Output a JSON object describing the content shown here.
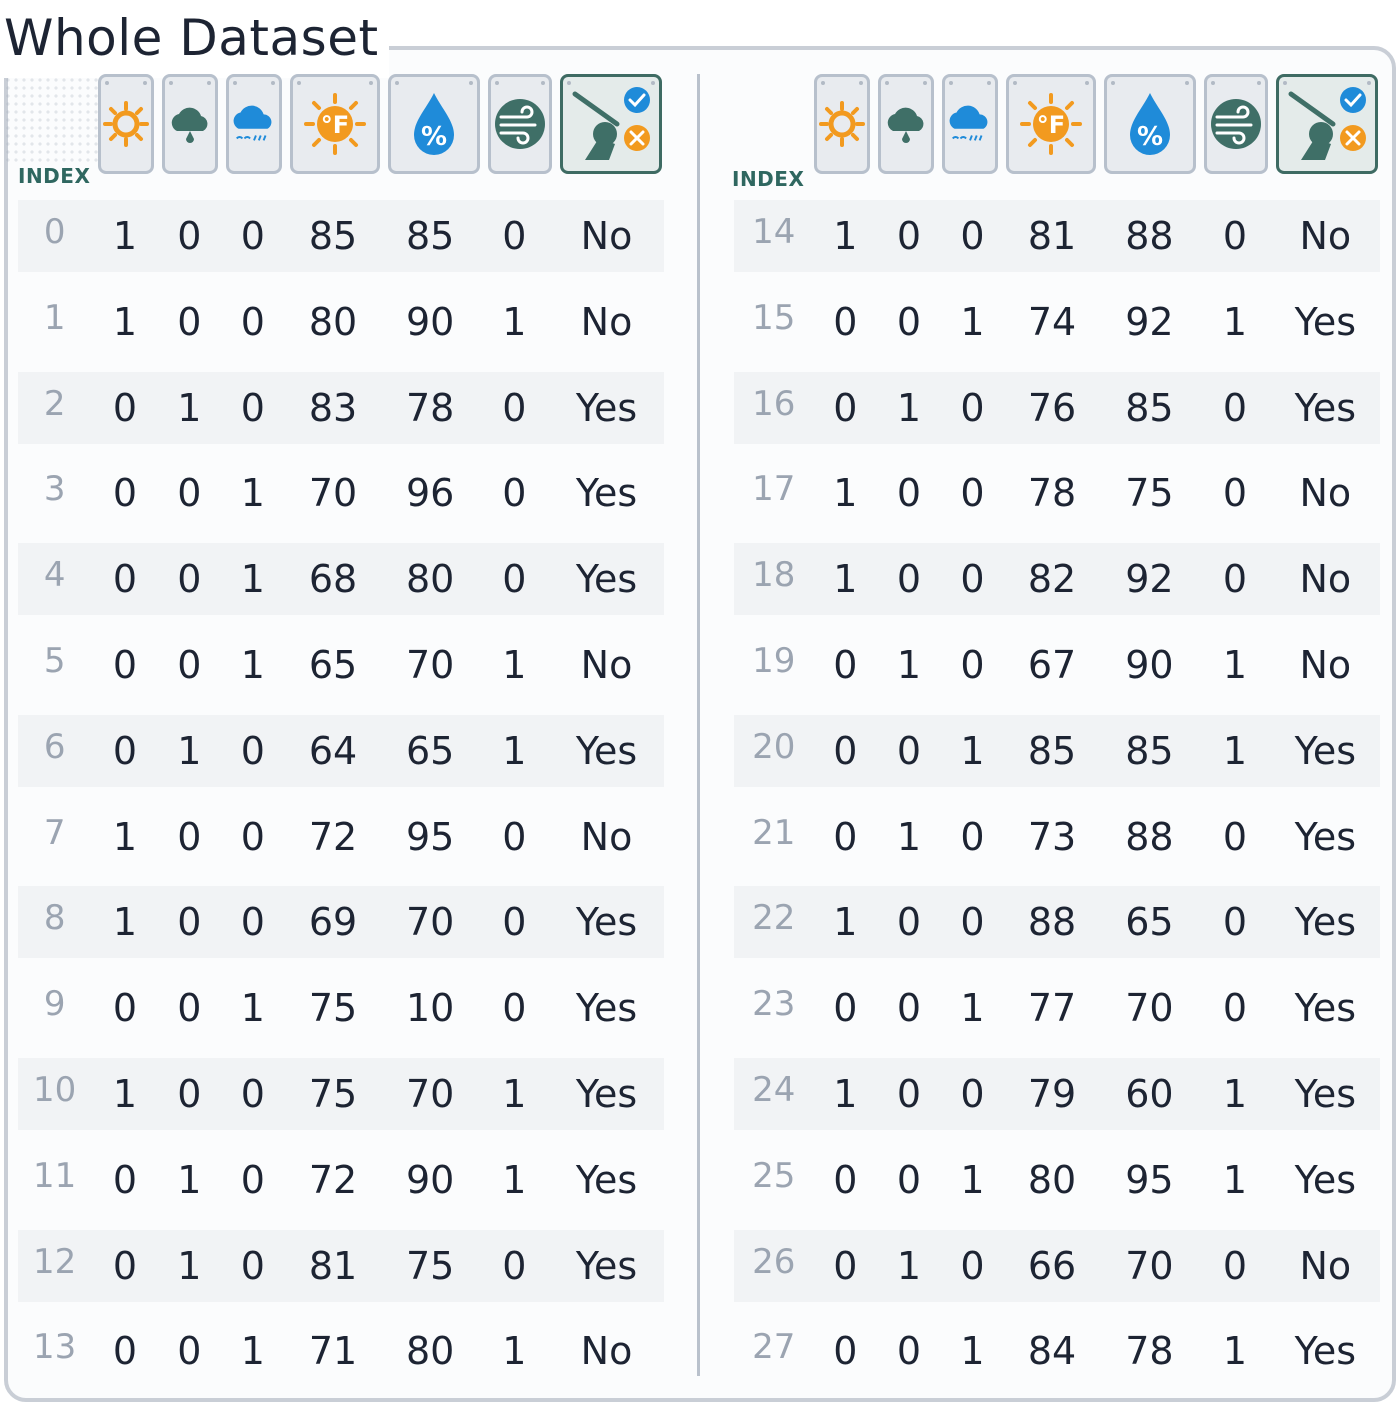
{
  "title": "Whole Dataset",
  "index_label": "INDEX",
  "colors": {
    "sunny": "#f29a1f",
    "cloudy": "#3f6f67",
    "rainy": "#1f8bd9",
    "humidity": "#1f8bd9",
    "wind": "#3f6f67",
    "play": "#3f6f67",
    "index_text": "#9ba4b1",
    "index_label": "#2f6760"
  },
  "header_icons": [
    "sun-icon",
    "cloud-icon",
    "rain-cloud-icon",
    "temperature-fahrenheit-icon",
    "humidity-percent-icon",
    "wind-icon",
    "golf-play-decision-icon"
  ],
  "left_table": [
    {
      "index": "0",
      "sunny": "1",
      "cloudy": "0",
      "rainy": "0",
      "temp": "85",
      "humidity": "85",
      "wind": "0",
      "play": "No"
    },
    {
      "index": "1",
      "sunny": "1",
      "cloudy": "0",
      "rainy": "0",
      "temp": "80",
      "humidity": "90",
      "wind": "1",
      "play": "No"
    },
    {
      "index": "2",
      "sunny": "0",
      "cloudy": "1",
      "rainy": "0",
      "temp": "83",
      "humidity": "78",
      "wind": "0",
      "play": "Yes"
    },
    {
      "index": "3",
      "sunny": "0",
      "cloudy": "0",
      "rainy": "1",
      "temp": "70",
      "humidity": "96",
      "wind": "0",
      "play": "Yes"
    },
    {
      "index": "4",
      "sunny": "0",
      "cloudy": "0",
      "rainy": "1",
      "temp": "68",
      "humidity": "80",
      "wind": "0",
      "play": "Yes"
    },
    {
      "index": "5",
      "sunny": "0",
      "cloudy": "0",
      "rainy": "1",
      "temp": "65",
      "humidity": "70",
      "wind": "1",
      "play": "No"
    },
    {
      "index": "6",
      "sunny": "0",
      "cloudy": "1",
      "rainy": "0",
      "temp": "64",
      "humidity": "65",
      "wind": "1",
      "play": "Yes"
    },
    {
      "index": "7",
      "sunny": "1",
      "cloudy": "0",
      "rainy": "0",
      "temp": "72",
      "humidity": "95",
      "wind": "0",
      "play": "No"
    },
    {
      "index": "8",
      "sunny": "1",
      "cloudy": "0",
      "rainy": "0",
      "temp": "69",
      "humidity": "70",
      "wind": "0",
      "play": "Yes"
    },
    {
      "index": "9",
      "sunny": "0",
      "cloudy": "0",
      "rainy": "1",
      "temp": "75",
      "humidity": "10",
      "wind": "0",
      "play": "Yes"
    },
    {
      "index": "10",
      "sunny": "1",
      "cloudy": "0",
      "rainy": "0",
      "temp": "75",
      "humidity": "70",
      "wind": "1",
      "play": "Yes"
    },
    {
      "index": "11",
      "sunny": "0",
      "cloudy": "1",
      "rainy": "0",
      "temp": "72",
      "humidity": "90",
      "wind": "1",
      "play": "Yes"
    },
    {
      "index": "12",
      "sunny": "0",
      "cloudy": "1",
      "rainy": "0",
      "temp": "81",
      "humidity": "75",
      "wind": "0",
      "play": "Yes"
    },
    {
      "index": "13",
      "sunny": "0",
      "cloudy": "0",
      "rainy": "1",
      "temp": "71",
      "humidity": "80",
      "wind": "1",
      "play": "No"
    }
  ],
  "right_table": [
    {
      "index": "14",
      "sunny": "1",
      "cloudy": "0",
      "rainy": "0",
      "temp": "81",
      "humidity": "88",
      "wind": "0",
      "play": "No"
    },
    {
      "index": "15",
      "sunny": "0",
      "cloudy": "0",
      "rainy": "1",
      "temp": "74",
      "humidity": "92",
      "wind": "1",
      "play": "Yes"
    },
    {
      "index": "16",
      "sunny": "0",
      "cloudy": "1",
      "rainy": "0",
      "temp": "76",
      "humidity": "85",
      "wind": "0",
      "play": "Yes"
    },
    {
      "index": "17",
      "sunny": "1",
      "cloudy": "0",
      "rainy": "0",
      "temp": "78",
      "humidity": "75",
      "wind": "0",
      "play": "No"
    },
    {
      "index": "18",
      "sunny": "1",
      "cloudy": "0",
      "rainy": "0",
      "temp": "82",
      "humidity": "92",
      "wind": "0",
      "play": "No"
    },
    {
      "index": "19",
      "sunny": "0",
      "cloudy": "1",
      "rainy": "0",
      "temp": "67",
      "humidity": "90",
      "wind": "1",
      "play": "No"
    },
    {
      "index": "20",
      "sunny": "0",
      "cloudy": "0",
      "rainy": "1",
      "temp": "85",
      "humidity": "85",
      "wind": "1",
      "play": "Yes"
    },
    {
      "index": "21",
      "sunny": "0",
      "cloudy": "1",
      "rainy": "0",
      "temp": "73",
      "humidity": "88",
      "wind": "0",
      "play": "Yes"
    },
    {
      "index": "22",
      "sunny": "1",
      "cloudy": "0",
      "rainy": "0",
      "temp": "88",
      "humidity": "65",
      "wind": "0",
      "play": "Yes"
    },
    {
      "index": "23",
      "sunny": "0",
      "cloudy": "0",
      "rainy": "1",
      "temp": "77",
      "humidity": "70",
      "wind": "0",
      "play": "Yes"
    },
    {
      "index": "24",
      "sunny": "1",
      "cloudy": "0",
      "rainy": "0",
      "temp": "79",
      "humidity": "60",
      "wind": "1",
      "play": "Yes"
    },
    {
      "index": "25",
      "sunny": "0",
      "cloudy": "0",
      "rainy": "1",
      "temp": "80",
      "humidity": "95",
      "wind": "1",
      "play": "Yes"
    },
    {
      "index": "26",
      "sunny": "0",
      "cloudy": "1",
      "rainy": "0",
      "temp": "66",
      "humidity": "70",
      "wind": "0",
      "play": "No"
    },
    {
      "index": "27",
      "sunny": "0",
      "cloudy": "0",
      "rainy": "1",
      "temp": "84",
      "humidity": "78",
      "wind": "1",
      "play": "Yes"
    }
  ]
}
